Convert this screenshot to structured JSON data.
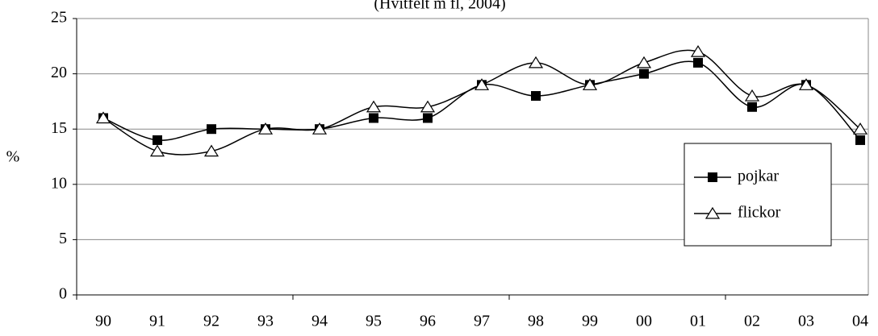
{
  "chart_data": {
    "type": "line",
    "subtitle": "(Hvitfelt m fl, 2004)",
    "y_label": "%",
    "categories": [
      "90",
      "91",
      "92",
      "93",
      "94",
      "95",
      "96",
      "97",
      "98",
      "99",
      "00",
      "01",
      "02",
      "03",
      "04"
    ],
    "series": [
      {
        "name": "pojkar",
        "color": "#000000",
        "marker": "square",
        "values": [
          16,
          14,
          15,
          15,
          15,
          16,
          16,
          19,
          18,
          19,
          20,
          21,
          17,
          19,
          14
        ]
      },
      {
        "name": "flickor",
        "color": "#000000",
        "marker": "triangle",
        "values": [
          16,
          13,
          13,
          15,
          15,
          17,
          17,
          19,
          21,
          19,
          21,
          22,
          18,
          19,
          15
        ]
      }
    ],
    "ylim": [
      0,
      25
    ],
    "yticks": [
      0,
      5,
      10,
      15,
      20,
      25
    ],
    "grid": true,
    "legend": "right"
  }
}
